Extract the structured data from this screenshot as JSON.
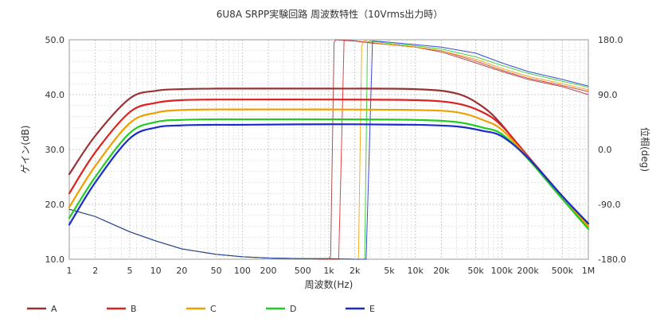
{
  "chart_data": {
    "type": "line",
    "title": "6U8A SRPP実験回路 周波数特性（10Vrms出力時）",
    "xlabel": "周波数(Hz)",
    "ylabel": "ゲイン(dB)",
    "y2label": "位相(deg)",
    "xscale": "log",
    "xlim": [
      1,
      1000000
    ],
    "ylim": [
      10,
      50
    ],
    "y2lim": [
      -180,
      180
    ],
    "grid": true,
    "legend_position": "bottom-left",
    "x_ticks": [
      {
        "v": 1,
        "label": "1"
      },
      {
        "v": 2,
        "label": "2"
      },
      {
        "v": 5,
        "label": "5"
      },
      {
        "v": 10,
        "label": "10"
      },
      {
        "v": 20,
        "label": "20"
      },
      {
        "v": 50,
        "label": "50"
      },
      {
        "v": 100,
        "label": "100"
      },
      {
        "v": 200,
        "label": "200"
      },
      {
        "v": 500,
        "label": "500"
      },
      {
        "v": 1000,
        "label": "1k"
      },
      {
        "v": 2000,
        "label": "2k"
      },
      {
        "v": 5000,
        "label": "5k"
      },
      {
        "v": 10000,
        "label": "10k"
      },
      {
        "v": 20000,
        "label": "20k"
      },
      {
        "v": 50000,
        "label": "50k"
      },
      {
        "v": 100000,
        "label": "100k"
      },
      {
        "v": 200000,
        "label": "200k"
      },
      {
        "v": 500000,
        "label": "500k"
      },
      {
        "v": 1000000,
        "label": "1M"
      }
    ],
    "y_ticks": [
      {
        "v": 50,
        "label": "50.0"
      },
      {
        "v": 40,
        "label": "40.0"
      },
      {
        "v": 30,
        "label": "30.0"
      },
      {
        "v": 20,
        "label": "20.0"
      },
      {
        "v": 10,
        "label": "10.0"
      }
    ],
    "y2_ticks": [
      {
        "v": 180,
        "label": "180.0"
      },
      {
        "v": 90,
        "label": "90.0"
      },
      {
        "v": 0,
        "label": "0.0"
      },
      {
        "v": -90,
        "label": "-90.0"
      },
      {
        "v": -180,
        "label": "-180.0"
      }
    ],
    "gain_x": [
      1,
      2,
      5,
      10,
      20,
      50,
      100,
      1000,
      10000,
      30000,
      60000,
      100000,
      200000,
      500000,
      1000000
    ],
    "series": [
      {
        "name": "A",
        "color": "#993333",
        "gain": [
          25.5,
          32.5,
          39.3,
          40.7,
          41.0,
          41.1,
          41.1,
          41.1,
          41.0,
          40.2,
          37.8,
          34.5,
          28.5,
          21.0,
          16.0
        ],
        "phase_x": [
          1,
          2,
          5,
          10,
          20,
          50,
          100,
          200,
          500,
          900,
          1000,
          1050,
          1150,
          1200,
          1500,
          2000,
          3000,
          5000,
          10000,
          20000,
          50000,
          100000,
          200000,
          500000,
          1000000
        ],
        "phase": [
          -98,
          -110,
          -135,
          -150,
          -163,
          -172,
          -176,
          -178,
          -179,
          -180,
          -180,
          -175,
          175,
          180,
          179,
          178,
          175,
          172,
          168,
          160,
          142,
          128,
          115,
          103,
          90
        ]
      },
      {
        "name": "B",
        "color": "#dd2222",
        "gain": [
          22.0,
          29.5,
          36.8,
          38.5,
          39.0,
          39.1,
          39.1,
          39.1,
          39.0,
          38.4,
          36.8,
          34.3,
          28.8,
          21.5,
          16.5
        ],
        "phase_x": [
          1,
          2,
          5,
          10,
          20,
          50,
          100,
          200,
          500,
          1000,
          1300,
          1400,
          1500,
          2000,
          3000,
          5000,
          10000,
          20000,
          50000,
          100000,
          200000,
          500000,
          1000000
        ],
        "phase": [
          -98,
          -110,
          -135,
          -150,
          -163,
          -172,
          -176,
          -178,
          -179,
          -180,
          -180,
          0,
          179,
          178,
          175,
          172,
          168,
          162,
          145,
          130,
          117,
          105,
          95
        ]
      },
      {
        "name": "C",
        "color": "#eea000",
        "gain": [
          19.5,
          27.0,
          34.8,
          36.7,
          37.2,
          37.3,
          37.3,
          37.3,
          37.2,
          36.8,
          35.4,
          33.6,
          28.5,
          21.3,
          16.0
        ],
        "phase_x": [
          1,
          2,
          5,
          10,
          20,
          50,
          100,
          200,
          500,
          1000,
          2000,
          2200,
          2400,
          2600,
          3000,
          5000,
          10000,
          20000,
          50000,
          100000,
          200000,
          500000,
          1000000
        ],
        "phase": [
          -98,
          -110,
          -135,
          -150,
          -163,
          -172,
          -176,
          -178,
          -179,
          -179,
          -180,
          -180,
          170,
          179,
          176,
          172,
          168,
          162,
          148,
          133,
          120,
          108,
          98
        ]
      },
      {
        "name": "D",
        "color": "#22cc22",
        "gain": [
          17.5,
          25.0,
          33.0,
          35.0,
          35.4,
          35.5,
          35.5,
          35.5,
          35.4,
          35.0,
          34.0,
          32.8,
          28.3,
          21.0,
          15.5
        ],
        "phase_x": [
          1,
          2,
          5,
          10,
          20,
          50,
          100,
          200,
          500,
          1000,
          2000,
          2600,
          2800,
          3000,
          5000,
          10000,
          20000,
          50000,
          100000,
          200000,
          500000,
          1000000
        ],
        "phase": [
          -98,
          -110,
          -135,
          -150,
          -163,
          -172,
          -176,
          -178,
          -179,
          -179,
          -180,
          -180,
          175,
          178,
          174,
          170,
          165,
          152,
          138,
          125,
          112,
          102
        ]
      },
      {
        "name": "E",
        "color": "#1a2ccc",
        "gain": [
          16.3,
          24.0,
          32.0,
          34.0,
          34.4,
          34.5,
          34.5,
          34.6,
          34.5,
          34.2,
          33.4,
          32.4,
          28.5,
          21.5,
          16.5
        ],
        "phase_x": [
          1,
          2,
          5,
          10,
          20,
          50,
          100,
          200,
          500,
          1000,
          2000,
          2700,
          3200,
          5000,
          10000,
          20000,
          50000,
          100000,
          200000,
          500000,
          1000000
        ],
        "phase": [
          -98,
          -110,
          -135,
          -150,
          -163,
          -172,
          -176,
          -178,
          -179,
          -179,
          -180,
          -180,
          178,
          176,
          172,
          168,
          158,
          142,
          128,
          115,
          104
        ]
      }
    ]
  }
}
